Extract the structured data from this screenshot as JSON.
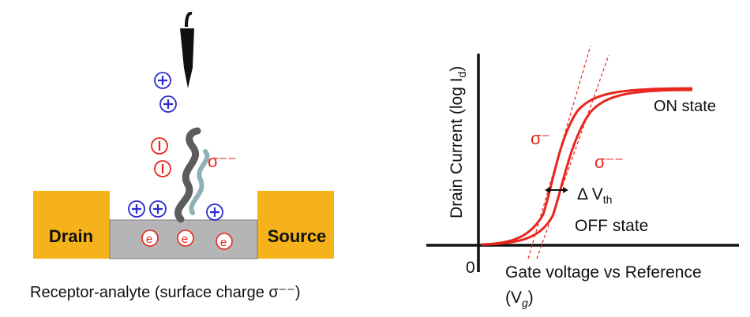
{
  "left_diagram": {
    "drain_label": "Drain",
    "source_label": "Source",
    "caption": "Receptor-analyte (surface charge σ⁻⁻)",
    "sigma_label": "σ⁻⁻",
    "electron_symbol": "e",
    "electron_sup": "-",
    "positive_symbol": "+",
    "negative_symbol": "−",
    "colors": {
      "electrode": "#F6B21B",
      "channel": "#B5B5B5",
      "positive": "#2B2BCF",
      "negative": "#E8261E"
    }
  },
  "right_graph": {
    "ylabel_main": "Drain Current (log I",
    "ylabel_sub": "d",
    "ylabel_end": ")",
    "origin_label": "0",
    "xlabel_line1": "Gate voltage vs Reference",
    "xlabel_line2_a": "(V",
    "xlabel_line2_sub": "g",
    "xlabel_line2_b": ")",
    "on_state": "ON state",
    "off_state": "OFF state",
    "delta_prefix": "Δ V",
    "delta_sub": "th",
    "sigma_minus": "σ⁻",
    "sigma_minus2": "σ⁻⁻",
    "colors": {
      "curve": "#E8261E",
      "axis": "#111111"
    }
  }
}
